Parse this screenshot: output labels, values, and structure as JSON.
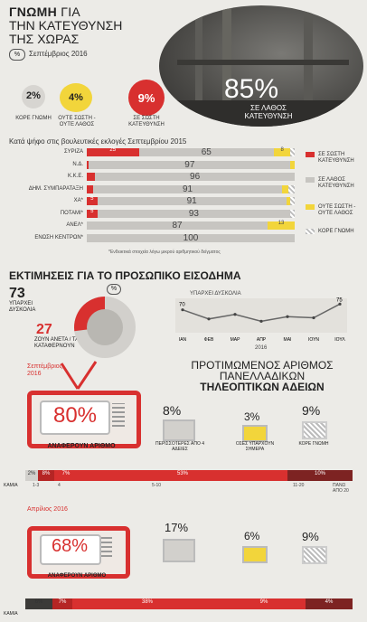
{
  "header": {
    "title_bold": "ΓΝΩΜΗ",
    "title_rest": "ΓΙΑ",
    "title_line2": "ΤΗΝ ΚΑΤΕΥΘΥΝΣΗ",
    "title_line3": "ΤΗΣ ΧΩΡΑΣ",
    "pct_badge": "%",
    "date": "Σεπτέμβριος 2016"
  },
  "direction": {
    "wrong_value": "85%",
    "wrong_label": "ΣΕ ΛΑΘΟΣ ΚΑΤΕΥΘΥΝΣΗ",
    "circles": [
      {
        "value": "2%",
        "label": "ΚΟΡΕ ΓΝΩΜΗ"
      },
      {
        "value": "4%",
        "label": "ΟΥΤΕ ΣΩΣΤΗ - ΟΥΤΕ ΛΑΘΟΣ"
      },
      {
        "value": "9%",
        "label": "ΣΕ ΣΩΣΤΗ ΚΑΤΕΥΘΥΝΣΗ"
      }
    ]
  },
  "chart_data": [
    {
      "type": "bar",
      "title": "Κατά ψήφο στις βουλευτικές εκλογές Σεπτεμβρίου 2015",
      "categories": [
        "ΣΥΡΙΖΑ",
        "Ν.Δ.",
        "Κ.Κ.Ε.",
        "ΔΗΜ. ΣΥΜΠΑΡΑΤΑΞΗ",
        "ΧΑ*",
        "ΠΟΤΑΜΙ*",
        "ΑΝΕΛ*",
        "ΕΝΩΣΗ ΚΕΝΤΡΩΝ*"
      ],
      "series": [
        {
          "name": "ΣΕ ΣΩΣΤΗ ΚΑΤΕΥΘΥΝΣΗ",
          "values": [
            25,
            1,
            4,
            3,
            5,
            5,
            0,
            0
          ]
        },
        {
          "name": "ΣΕ ΛΑΘΟΣ ΚΑΤΕΥΘΥΝΣΗ",
          "values": [
            65,
            97,
            96,
            91,
            91,
            93,
            87,
            100
          ]
        },
        {
          "name": "ΟΥΤΕ ΣΩΣΤΗ - ΟΥΤΕ ΛΑΘΟΣ",
          "values": [
            8,
            2,
            0,
            3,
            2,
            0,
            13,
            0
          ]
        },
        {
          "name": "ΚΟΡΕ ΓΝΩΜΗ",
          "values": [
            2,
            0,
            0,
            3,
            2,
            2,
            0,
            0
          ]
        }
      ],
      "note": "*Ενδεικτικά στοιχεία λόγω μικρού αριθμητικού δείγματος"
    },
    {
      "type": "line",
      "title": "ΕΚΤΙΜΗΣΕΙΣ ΓΙΑ ΤΟ ΠΡΟΣΩΠΙΚΟ ΕΙΣΟΔΗΜΑ",
      "x": [
        "ΙΑΝ",
        "ΦΕΒ",
        "ΜΑΡ",
        "ΑΠΡ",
        "ΜΑΙ",
        "ΙΟΥΝ",
        "ΙΟΥΛ"
      ],
      "series": [
        {
          "name": "ΥΠΑΡΧΕΙ ΔΥΣΚΟΛΙΑ",
          "values": [
            70,
            62,
            66,
            60,
            64,
            63,
            75
          ]
        }
      ],
      "xlabel": "2016",
      "labels": {
        "start": "70",
        "end": "75"
      }
    },
    {
      "type": "pie",
      "values": [
        73,
        27
      ],
      "labels": [
        "ΥΠΑΡΧΕΙ ΔΥΣΚΟΛΙΑ",
        "ΖΟΥΝ ΑΝΕΤΑ / ΤΑ ΚΑΤΑΦΕΡΝΟΥΝ"
      ]
    }
  ],
  "income": {
    "pct_badge": "%",
    "difficulty_value": "73",
    "difficulty_label": "ΥΠΑΡΧΕΙ ΔΥΣΚΟΛΙΑ",
    "comfortable_value": "27",
    "comfortable_label": "ΖΟΥΝ ΑΝΕΤΑ / ΤΑ ΚΑΤΑΦΕΡΝΟΥΝ",
    "year": "2016"
  },
  "licenses": {
    "title_line1": "ΠΡΟΤΙΜΩΜΕΝΟΣ ΑΡΙΘΜΟΣ",
    "title_line2": "ΠΑΝΕΛΛΑΔΙΚΩΝ",
    "title_line3": "ΤΗΛΕΟΠΤΙΚΩΝ ΑΔΕΙΩΝ",
    "sept": {
      "label": "Σεπτέμβριος 2016",
      "main_value": "80%",
      "main_caption": "ΑΝΑΦΕΡΟΥΝ ΑΡΙΘΜΟ",
      "side": [
        {
          "value": "8%",
          "label": "ΠΕΡΙΣΣΟΤΕΡΕΣ ΑΠΟ 4 ΑΔΕΙΕΣ"
        },
        {
          "value": "3%",
          "label": "ΟΣΕΣ ΥΠΑΡΧΟΥΝ ΣΗΜΕΡΑ"
        },
        {
          "value": "9%",
          "label": "ΚΟΡΕ ΓΝΩΜΗ"
        }
      ],
      "bar_labels": [
        "2%",
        "8%",
        "7%",
        "53%",
        "10%"
      ],
      "bar_ticks": [
        "1-3",
        "4",
        "5-10",
        "11-20",
        "ΠΑΝΩ ΑΠΟ 20"
      ],
      "bar_left_label": "ΚΑΜΙΑ"
    },
    "april": {
      "label": "Απρίλιος 2016",
      "main_value": "68%",
      "main_caption": "ΑΝΑΦΕΡΟΥΝ ΑΡΙΘΜΟ",
      "side": [
        {
          "value": "17%",
          "label": ""
        },
        {
          "value": "6%",
          "label": ""
        },
        {
          "value": "9%",
          "label": ""
        }
      ],
      "bar_labels": [
        "6%",
        "7%",
        "38%",
        "9%",
        "4%"
      ],
      "bar_left_label": "ΚΑΜΙΑ"
    }
  },
  "colors": {
    "red": "#d8302f",
    "gray": "#d2d0cc",
    "yellow": "#f2d53b",
    "dark": "#3b3a38"
  }
}
